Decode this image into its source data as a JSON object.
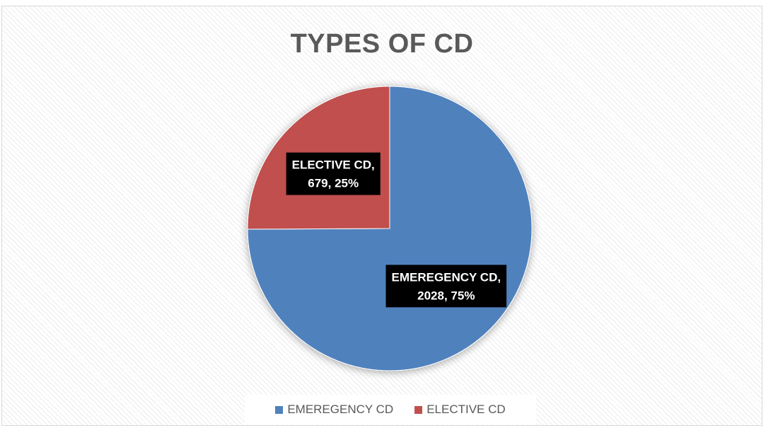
{
  "chart_data": {
    "type": "pie",
    "title": "TYPES OF CD",
    "categories": [
      "EMEREGENCY CD",
      "ELECTIVE CD"
    ],
    "values": [
      2028,
      679
    ],
    "percentages": [
      "75%",
      "25%"
    ],
    "colors": [
      "#4f81bd",
      "#c0504d"
    ],
    "data_labels": [
      {
        "line1": "EMEREGENCY CD,",
        "line2": "2028, 75%"
      },
      {
        "line1": "ELECTIVE CD,",
        "line2": "679, 25%"
      }
    ],
    "legend": {
      "position": "bottom",
      "entries": [
        "EMEREGENCY CD",
        "ELECTIVE CD"
      ]
    }
  }
}
